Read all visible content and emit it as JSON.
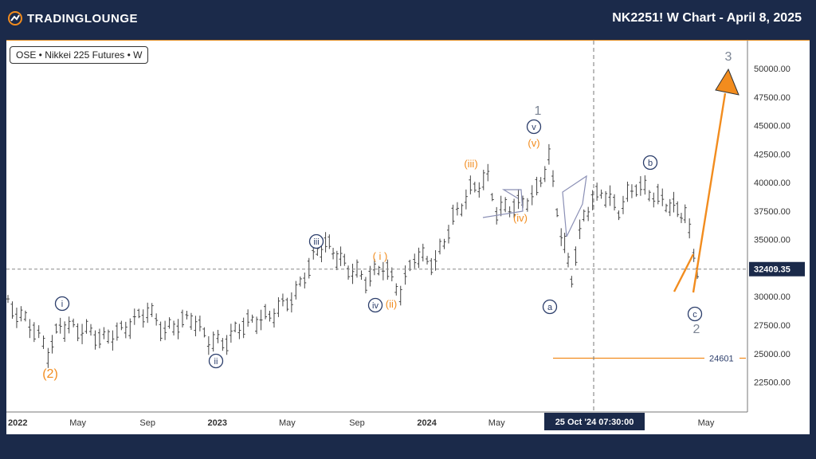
{
  "header": {
    "logo_text": "TRADINGLOUNGE",
    "title": "NK2251! W Chart - April 8, 2025"
  },
  "symbol_label": "OSE • Nikkei 225 Futures • W",
  "chart_data": {
    "type": "bar",
    "ylim": [
      20000,
      52500
    ],
    "y_ticks": [
      "50000.00",
      "47500.00",
      "45000.00",
      "42500.00",
      "40000.00",
      "37500.00",
      "35000.00",
      "32500.00",
      "30000.00",
      "27500.00",
      "25000.00",
      "22500.00"
    ],
    "x_ticks": [
      "2022",
      "May",
      "Sep",
      "2023",
      "May",
      "Sep",
      "2024",
      "May",
      "May"
    ],
    "current_price": "32409.35",
    "support_level": "24601",
    "crosshair_time": "25 Oct '24  07:30:00",
    "colors": {
      "orange": "#f28c1e",
      "navy": "#2c3e6b",
      "gray": "#7c8594",
      "price_bg": "#1b2a4a"
    },
    "wave_labels": [
      {
        "text": "(2)",
        "color": "orange"
      },
      {
        "text": "i",
        "color": "navy",
        "circled": true
      },
      {
        "text": "ii",
        "color": "navy",
        "circled": true
      },
      {
        "text": "iii",
        "color": "navy",
        "circled": true
      },
      {
        "text": "( i )",
        "color": "orange"
      },
      {
        "text": "iv",
        "color": "navy",
        "circled": true
      },
      {
        "text": "(ii)",
        "color": "orange"
      },
      {
        "text": "(iii)",
        "color": "orange"
      },
      {
        "text": "(iv)",
        "color": "orange"
      },
      {
        "text": "(v)",
        "color": "orange"
      },
      {
        "text": "v",
        "color": "navy",
        "circled": true
      },
      {
        "text": "1",
        "color": "gray"
      },
      {
        "text": "a",
        "color": "navy",
        "circled": true
      },
      {
        "text": "b",
        "color": "navy",
        "circled": true
      },
      {
        "text": "c",
        "color": "navy",
        "circled": true
      },
      {
        "text": "2",
        "color": "gray"
      },
      {
        "text": "3",
        "color": "gray"
      }
    ]
  }
}
